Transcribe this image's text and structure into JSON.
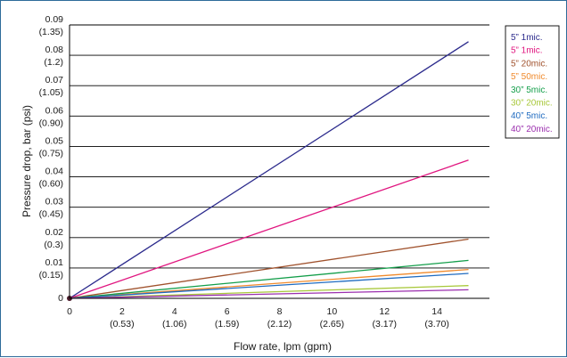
{
  "chart_data": {
    "type": "line",
    "title": "",
    "xlabel": "Flow rate, lpm (gpm)",
    "ylabel": "Pressure drop, bar (psi)",
    "xlim": [
      0,
      16
    ],
    "ylim": [
      0,
      0.09
    ],
    "grid": "horizontal",
    "legend_position": "right",
    "x_ticks": [
      {
        "value": 0,
        "label": "0",
        "sub": ""
      },
      {
        "value": 2,
        "label": "2",
        "sub": "(0.53)"
      },
      {
        "value": 4,
        "label": "4",
        "sub": "(1.06)"
      },
      {
        "value": 6,
        "label": "6",
        "sub": "(1.59)"
      },
      {
        "value": 8,
        "label": "8",
        "sub": "(2.12)"
      },
      {
        "value": 10,
        "label": "10",
        "sub": "(2.65)"
      },
      {
        "value": 12,
        "label": "12",
        "sub": "(3.17)"
      },
      {
        "value": 14,
        "label": "14",
        "sub": "(3.70)"
      }
    ],
    "y_ticks": [
      {
        "value": 0,
        "label": "0",
        "sub": ""
      },
      {
        "value": 0.01,
        "label": "0.01",
        "sub": "(0.15)"
      },
      {
        "value": 0.02,
        "label": "0.02",
        "sub": "(0.3)"
      },
      {
        "value": 0.03,
        "label": "0.03",
        "sub": "(0.45)"
      },
      {
        "value": 0.04,
        "label": "0.04",
        "sub": "(0.60)"
      },
      {
        "value": 0.05,
        "label": "0.05",
        "sub": "(0.75)"
      },
      {
        "value": 0.06,
        "label": "0.06",
        "sub": "(0.90)"
      },
      {
        "value": 0.07,
        "label": "0.07",
        "sub": "(1.05)"
      },
      {
        "value": 0.08,
        "label": "0.08",
        "sub": "(1.2)"
      },
      {
        "value": 0.09,
        "label": "0.09",
        "sub": "(1.35)"
      }
    ],
    "series": [
      {
        "name": "5” 1mic.",
        "color": "#2b2a8c",
        "x": [
          0,
          15.2
        ],
        "y": [
          0,
          0.0845
        ]
      },
      {
        "name": "5” 1mic.",
        "color": "#e0157f",
        "x": [
          0,
          15.2
        ],
        "y": [
          0,
          0.0455
        ]
      },
      {
        "name": "5” 20mic.",
        "color": "#a0522d",
        "x": [
          0,
          15.2
        ],
        "y": [
          0,
          0.0195
        ]
      },
      {
        "name": "5” 50mic.",
        "color": "#f08a2c",
        "x": [
          0,
          15.2
        ],
        "y": [
          0,
          0.0095
        ]
      },
      {
        "name": "30” 5mic.",
        "color": "#139e4a",
        "x": [
          0,
          15.2
        ],
        "y": [
          0,
          0.0125
        ]
      },
      {
        "name": "30” 20mic.",
        "color": "#a8c83a",
        "x": [
          0,
          15.2
        ],
        "y": [
          0,
          0.0042
        ]
      },
      {
        "name": "40” 5mic.",
        "color": "#1f6bc0",
        "x": [
          0,
          15.2
        ],
        "y": [
          0,
          0.0082
        ]
      },
      {
        "name": "40” 20mic.",
        "color": "#9b2fae",
        "x": [
          0,
          15.2
        ],
        "y": [
          0,
          0.0028
        ]
      }
    ]
  }
}
